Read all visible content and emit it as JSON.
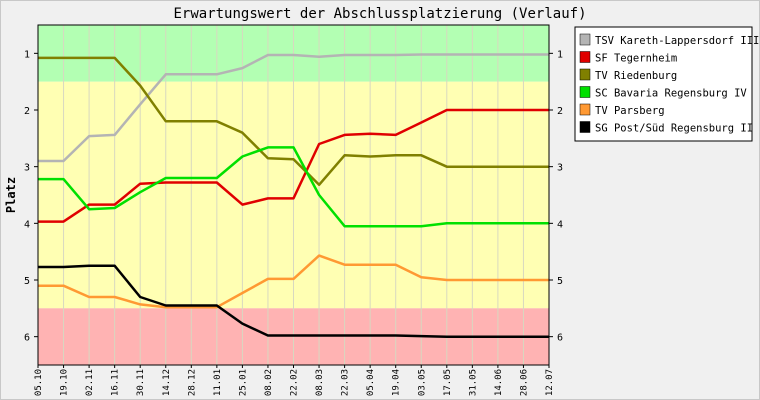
{
  "chart_data": {
    "type": "line",
    "title": "Erwartungswert der Abschlussplatzierung (Verlauf)",
    "ylabel": "Platz",
    "xlabel": "",
    "ylim": [
      0.5,
      6.5
    ],
    "y_inverted": true,
    "yticks": [
      1,
      2,
      3,
      4,
      5,
      6
    ],
    "categories": [
      "05.10",
      "19.10",
      "02.11",
      "16.11",
      "30.11",
      "14.12",
      "28.12",
      "11.01",
      "25.01",
      "08.02",
      "22.02",
      "08.03",
      "22.03",
      "05.04",
      "19.04",
      "03.05",
      "17.05",
      "31.05",
      "14.06",
      "28.06",
      "12.07"
    ],
    "bands": [
      {
        "from": 0.5,
        "to": 1.5,
        "color": "#b3ffb3"
      },
      {
        "from": 1.5,
        "to": 5.5,
        "color": "#ffffb3"
      },
      {
        "from": 5.5,
        "to": 6.5,
        "color": "#ffb3b3"
      }
    ],
    "legend_position": "right",
    "series": [
      {
        "name": "TSV Kareth-Lappersdorf III",
        "color": "#b4b4b4",
        "values": [
          2.9,
          2.9,
          2.46,
          2.44,
          1.9,
          1.37,
          1.37,
          1.37,
          1.26,
          1.03,
          1.03,
          1.06,
          1.03,
          1.03,
          1.03,
          1.02,
          1.02,
          1.02,
          1.02,
          1.02,
          1.02
        ]
      },
      {
        "name": "SF Tegernheim",
        "color": "#e00000",
        "values": [
          3.97,
          3.97,
          3.67,
          3.67,
          3.3,
          3.28,
          3.28,
          3.28,
          3.67,
          3.56,
          3.56,
          2.6,
          2.44,
          2.42,
          2.44,
          2.22,
          2.0,
          2.0,
          2.0,
          2.0,
          2.0
        ]
      },
      {
        "name": "TV Riedenburg",
        "color": "#808000",
        "values": [
          1.08,
          1.08,
          1.08,
          1.08,
          1.57,
          2.2,
          2.2,
          2.2,
          2.4,
          2.85,
          2.87,
          3.32,
          2.8,
          2.82,
          2.8,
          2.8,
          3.0,
          3.0,
          3.0,
          3.0,
          3.0
        ]
      },
      {
        "name": "SC Bavaria Regensburg IV",
        "color": "#00e000",
        "values": [
          3.22,
          3.22,
          3.75,
          3.73,
          3.45,
          3.2,
          3.2,
          3.2,
          2.82,
          2.66,
          2.66,
          3.5,
          4.05,
          4.05,
          4.05,
          4.05,
          4.0,
          4.0,
          4.0,
          4.0,
          4.0
        ]
      },
      {
        "name": "TV Parsberg",
        "color": "#ff9933",
        "values": [
          5.1,
          5.1,
          5.3,
          5.3,
          5.43,
          5.48,
          5.48,
          5.48,
          5.23,
          4.98,
          4.98,
          4.57,
          4.73,
          4.73,
          4.73,
          4.95,
          5.0,
          5.0,
          5.0,
          5.0,
          5.0
        ]
      },
      {
        "name": "SG Post/Süd Regensburg II",
        "color": "#000000",
        "values": [
          4.77,
          4.77,
          4.75,
          4.75,
          5.3,
          5.45,
          5.45,
          5.45,
          5.77,
          5.98,
          5.98,
          5.98,
          5.98,
          5.98,
          5.98,
          5.99,
          6.0,
          6.0,
          6.0,
          6.0,
          6.0
        ]
      }
    ]
  }
}
